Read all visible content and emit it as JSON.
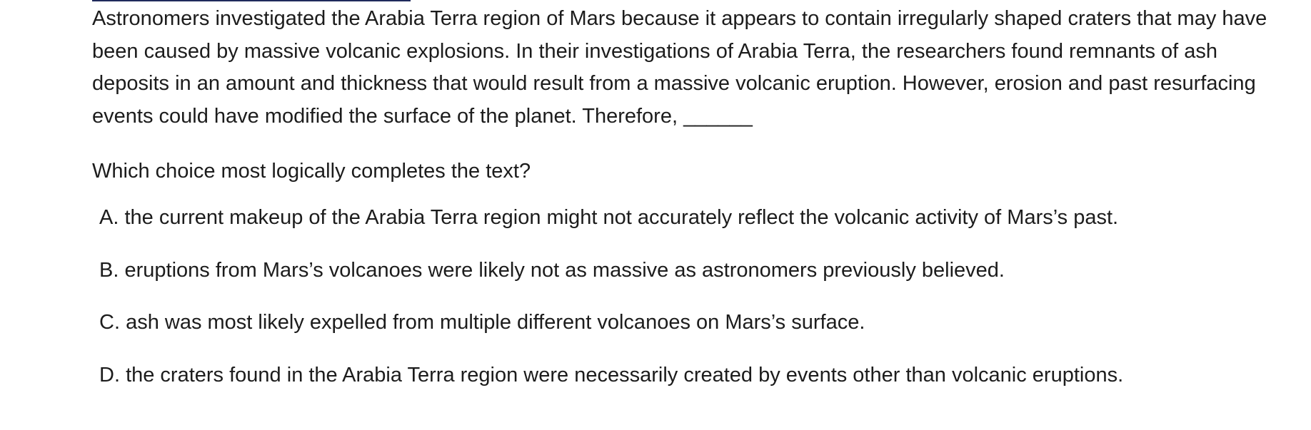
{
  "passage": {
    "text": "Astronomers investigated the Arabia Terra region of Mars because it appears to contain irregularly shaped craters that may have been caused by massive volcanic explosions. In their investigations of Arabia Terra, the researchers found remnants of ash deposits in an amount and thickness that would result from a massive volcanic eruption. However, erosion and past resurfacing events could have modified the surface of the planet. Therefore, ______"
  },
  "question": {
    "prompt": "Which choice most logically completes the text?"
  },
  "choices": [
    {
      "letter": "A.",
      "text": "the current makeup of the Arabia Terra region might not accurately reflect the volcanic activity of Mars’s past."
    },
    {
      "letter": "B.",
      "text": "eruptions from Mars’s volcanoes were likely not as massive as astronomers previously believed."
    },
    {
      "letter": "C.",
      "text": "ash was most likely expelled from multiple different volcanoes on Mars’s surface."
    },
    {
      "letter": "D.",
      "text": "the craters found in the Arabia Terra region were necessarily created by events other than volcanic eruptions."
    }
  ]
}
